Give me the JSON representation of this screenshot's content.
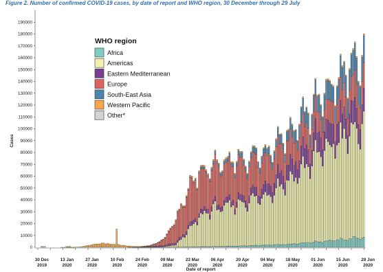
{
  "caption": "Figure 2. Number of confirmed COVID-19 cases, by date of report and WHO region, 30 December through 29 July",
  "chart_data": {
    "type": "bar",
    "stacked": true,
    "ylabel": "Cases",
    "xlabel": "Date of report",
    "ylim": [
      0,
      200000
    ],
    "yticks": [
      0,
      10000,
      20000,
      30000,
      40000,
      50000,
      60000,
      70000,
      80000,
      90000,
      100000,
      110000,
      120000,
      130000,
      140000,
      150000,
      160000,
      170000,
      180000,
      190000
    ],
    "ytick_labels": [
      "0",
      "10000",
      "20000",
      "30000",
      "40000",
      "50000",
      "60000",
      "70000",
      "80000",
      "90000",
      "100000",
      "110000",
      "120000",
      "130000",
      "140000",
      "150000",
      "160000",
      "170000",
      "180000",
      "190000"
    ],
    "xtick_labels": [
      {
        "day": "30 Dec",
        "year": "2019",
        "index": 0
      },
      {
        "day": "13 Jan",
        "year": "2020",
        "index": 14
      },
      {
        "day": "27 Jan",
        "year": "2020",
        "index": 28
      },
      {
        "day": "10 Feb",
        "year": "2020",
        "index": 42
      },
      {
        "day": "24 Feb",
        "year": "2020",
        "index": 56
      },
      {
        "day": "09 Mar",
        "year": "2020",
        "index": 70
      },
      {
        "day": "23 Mar",
        "year": "2020",
        "index": 84
      },
      {
        "day": "06 Apr",
        "year": "2020",
        "index": 98
      },
      {
        "day": "20 Apr",
        "year": "2020",
        "index": 112
      },
      {
        "day": "04 May",
        "year": "2020",
        "index": 126
      },
      {
        "day": "18 May",
        "year": "2020",
        "index": 140
      },
      {
        "day": "01 Jun",
        "year": "2020",
        "index": 154
      },
      {
        "day": "15 Jun",
        "year": "2020",
        "index": 168
      },
      {
        "day": "29 Jun",
        "year": "2020",
        "index": 182
      }
    ],
    "grid": false,
    "legend": {
      "title": "WHO region",
      "placement": "top-left",
      "entries": [
        "Africa",
        "Americas",
        "Eastern Mediterranean",
        "Europe",
        "South-East Asia",
        "Western Pacific",
        "Other*"
      ]
    },
    "series": [
      {
        "name": "Africa",
        "color": "#7fcdc4",
        "anchors": [
          [
            0,
            0
          ],
          [
            50,
            0
          ],
          [
            60,
            30
          ],
          [
            70,
            100
          ],
          [
            84,
            300
          ],
          [
            98,
            700
          ],
          [
            112,
            1100
          ],
          [
            126,
            1900
          ],
          [
            140,
            2800
          ],
          [
            154,
            4600
          ],
          [
            168,
            6500
          ],
          [
            182,
            9000
          ]
        ]
      },
      {
        "name": "Americas",
        "color": "#f2f2b0",
        "anchors": [
          [
            0,
            0
          ],
          [
            50,
            0
          ],
          [
            62,
            40
          ],
          [
            70,
            300
          ],
          [
            77,
            1800
          ],
          [
            84,
            14000
          ],
          [
            91,
            27000
          ],
          [
            98,
            33000
          ],
          [
            105,
            34000
          ],
          [
            112,
            37000
          ],
          [
            119,
            40000
          ],
          [
            126,
            42000
          ],
          [
            133,
            50000
          ],
          [
            140,
            56000
          ],
          [
            147,
            64000
          ],
          [
            154,
            73000
          ],
          [
            161,
            80000
          ],
          [
            168,
            88000
          ],
          [
            175,
            92000
          ],
          [
            182,
            97000
          ]
        ]
      },
      {
        "name": "Eastern Mediterranean",
        "color": "#7a3d8f",
        "anchors": [
          [
            0,
            0
          ],
          [
            55,
            0
          ],
          [
            60,
            300
          ],
          [
            70,
            1000
          ],
          [
            77,
            1800
          ],
          [
            84,
            3000
          ],
          [
            91,
            3500
          ],
          [
            98,
            3800
          ],
          [
            105,
            4300
          ],
          [
            112,
            5200
          ],
          [
            119,
            6500
          ],
          [
            126,
            8200
          ],
          [
            133,
            10500
          ],
          [
            140,
            12500
          ],
          [
            147,
            14500
          ],
          [
            154,
            16000
          ],
          [
            161,
            17500
          ],
          [
            168,
            18500
          ],
          [
            175,
            19000
          ],
          [
            182,
            19000
          ]
        ]
      },
      {
        "name": "Europe",
        "color": "#d9655e",
        "anchors": [
          [
            0,
            0
          ],
          [
            52,
            0
          ],
          [
            58,
            150
          ],
          [
            63,
            700
          ],
          [
            67,
            2500
          ],
          [
            70,
            5000
          ],
          [
            74,
            12000
          ],
          [
            78,
            22000
          ],
          [
            82,
            30000
          ],
          [
            85,
            33000
          ],
          [
            91,
            34000
          ],
          [
            98,
            33000
          ],
          [
            105,
            31000
          ],
          [
            112,
            30000
          ],
          [
            119,
            27000
          ],
          [
            126,
            25000
          ],
          [
            133,
            23000
          ],
          [
            140,
            21000
          ],
          [
            147,
            19000
          ],
          [
            154,
            18000
          ],
          [
            161,
            18000
          ],
          [
            168,
            19000
          ],
          [
            175,
            20000
          ],
          [
            182,
            22000
          ]
        ]
      },
      {
        "name": "South-East Asia",
        "color": "#4e83ad",
        "anchors": [
          [
            0,
            0
          ],
          [
            60,
            0
          ],
          [
            70,
            50
          ],
          [
            77,
            200
          ],
          [
            84,
            500
          ],
          [
            91,
            1200
          ],
          [
            98,
            2000
          ],
          [
            105,
            2600
          ],
          [
            112,
            3500
          ],
          [
            119,
            4200
          ],
          [
            126,
            5300
          ],
          [
            133,
            6500
          ],
          [
            140,
            8500
          ],
          [
            147,
            11000
          ],
          [
            154,
            13000
          ],
          [
            161,
            14500
          ],
          [
            168,
            16500
          ],
          [
            175,
            19500
          ],
          [
            182,
            23000
          ]
        ]
      },
      {
        "name": "Western Pacific",
        "color": "#f5a64f",
        "anchors": [
          [
            0,
            0
          ],
          [
            12,
            0
          ],
          [
            16,
            15
          ],
          [
            20,
            60
          ],
          [
            24,
            400
          ],
          [
            28,
            1500
          ],
          [
            32,
            2800
          ],
          [
            36,
            3300
          ],
          [
            40,
            3000
          ],
          [
            42,
            2500
          ],
          [
            44,
            2700
          ],
          [
            46,
            2000
          ],
          [
            50,
            1200
          ],
          [
            54,
            700
          ],
          [
            58,
            500
          ],
          [
            62,
            400
          ],
          [
            66,
            450
          ],
          [
            70,
            500
          ],
          [
            77,
            1000
          ],
          [
            84,
            1300
          ],
          [
            98,
            1400
          ],
          [
            112,
            1300
          ],
          [
            126,
            1100
          ],
          [
            140,
            1200
          ],
          [
            154,
            1200
          ],
          [
            168,
            1400
          ],
          [
            182,
            1600
          ]
        ]
      },
      {
        "name": "Other*",
        "color": "#d3d3d3",
        "anchors": [
          [
            0,
            0
          ],
          [
            182,
            0
          ]
        ]
      }
    ],
    "spike_day": {
      "index": 44,
      "total": 15500
    }
  }
}
